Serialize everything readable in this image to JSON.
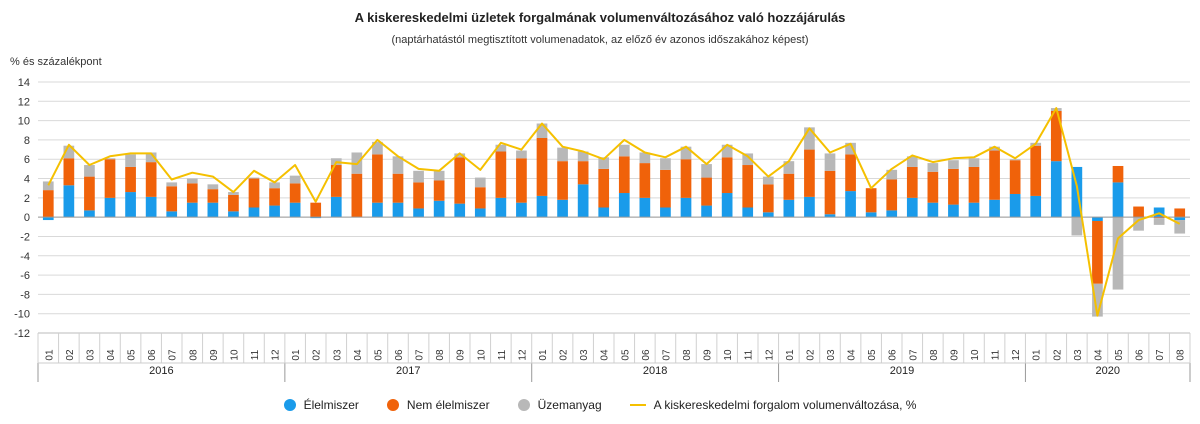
{
  "chart_data": {
    "type": "bar",
    "stacked": true,
    "title": "A kiskereskedelmi üzletek forgalmának volumenváltozásához való hozzájárulás",
    "subtitle": "(naptárhatástól megtisztított volumenadatok, az előző év azonos időszakához képest)",
    "ylabel": "% és százalékpont",
    "ylim": [
      -12,
      14
    ],
    "yticks": [
      14,
      12,
      10,
      8,
      6,
      4,
      2,
      0,
      -2,
      -4,
      -6,
      -8,
      -10,
      -12
    ],
    "grid": true,
    "months": [
      "01",
      "02",
      "03",
      "04",
      "05",
      "06",
      "07",
      "08",
      "09",
      "10",
      "11",
      "12",
      "01",
      "02",
      "03",
      "04",
      "05",
      "06",
      "07",
      "08",
      "09",
      "10",
      "11",
      "12",
      "01",
      "02",
      "03",
      "04",
      "05",
      "06",
      "07",
      "08",
      "09",
      "10",
      "11",
      "12",
      "01",
      "02",
      "03",
      "04",
      "05",
      "06",
      "07",
      "08",
      "09",
      "10",
      "11",
      "12",
      "01",
      "02",
      "03",
      "04",
      "05",
      "06",
      "07",
      "08"
    ],
    "years": [
      {
        "label": "2016",
        "count": 12
      },
      {
        "label": "2017",
        "count": 12
      },
      {
        "label": "2018",
        "count": 12
      },
      {
        "label": "2019",
        "count": 12
      },
      {
        "label": "2020",
        "count": 8
      }
    ],
    "series": [
      {
        "name": "Élelmiszer",
        "color": "#1a9bea",
        "values": [
          -0.3,
          3.3,
          0.7,
          2.0,
          2.6,
          2.1,
          0.6,
          1.5,
          1.5,
          0.6,
          1.0,
          1.2,
          1.5,
          -0.1,
          2.1,
          0.0,
          1.5,
          1.5,
          0.9,
          1.7,
          1.4,
          0.9,
          2.0,
          1.5,
          2.2,
          1.8,
          3.4,
          1.0,
          2.5,
          2.0,
          1.0,
          2.0,
          1.2,
          2.5,
          1.0,
          0.5,
          1.8,
          2.1,
          0.3,
          2.7,
          0.5,
          0.7,
          2.0,
          1.5,
          1.3,
          1.5,
          1.8,
          2.4,
          2.2,
          5.8,
          5.2,
          -0.4,
          3.6,
          0.0,
          1.0,
          -0.3
        ]
      },
      {
        "name": "Nem élelmiszer",
        "color": "#f0620a",
        "values": [
          2.8,
          2.8,
          3.5,
          4.0,
          2.6,
          3.6,
          2.6,
          2.0,
          1.4,
          1.7,
          3.0,
          1.8,
          2.0,
          1.5,
          3.3,
          4.5,
          5.0,
          3.0,
          2.7,
          2.1,
          4.8,
          2.2,
          4.8,
          4.6,
          6.0,
          4.0,
          2.4,
          4.0,
          3.8,
          3.6,
          3.9,
          4.0,
          2.9,
          3.7,
          4.4,
          2.9,
          2.7,
          4.9,
          4.5,
          3.8,
          2.5,
          3.2,
          3.2,
          3.2,
          3.7,
          3.7,
          5.1,
          3.5,
          5.2,
          5.2,
          0.0,
          -6.5,
          1.7,
          1.1,
          -0.1,
          0.9
        ]
      },
      {
        "name": "Üzemanyag",
        "color": "#b8b8b8",
        "values": [
          0.9,
          1.3,
          1.2,
          0.1,
          1.3,
          1.0,
          0.4,
          0.5,
          0.5,
          0.3,
          0.1,
          0.6,
          0.8,
          0.0,
          0.7,
          2.2,
          1.3,
          1.8,
          1.2,
          1.0,
          0.4,
          1.0,
          0.7,
          0.8,
          1.5,
          1.4,
          1.0,
          1.2,
          1.2,
          1.1,
          1.2,
          1.3,
          1.4,
          1.3,
          1.2,
          0.8,
          1.3,
          2.3,
          1.8,
          1.2,
          0.0,
          1.0,
          1.1,
          0.9,
          0.9,
          0.9,
          0.4,
          0.1,
          0.3,
          0.3,
          -1.9,
          -3.4,
          -7.5,
          -1.4,
          -0.7,
          -1.4
        ]
      },
      {
        "name": "A kiskereskedelmi forgalom volumenváltozása, %",
        "type": "line",
        "color": "#f5c000",
        "values": [
          3.3,
          7.5,
          5.4,
          6.3,
          6.6,
          6.6,
          3.9,
          4.6,
          4.2,
          2.6,
          4.8,
          3.6,
          5.4,
          1.6,
          5.7,
          5.5,
          8.0,
          6.3,
          5.0,
          4.8,
          6.6,
          4.9,
          7.7,
          7.0,
          9.7,
          7.3,
          6.8,
          6.0,
          8.0,
          6.7,
          6.2,
          7.3,
          5.5,
          7.5,
          6.3,
          4.2,
          5.8,
          9.2,
          6.7,
          7.6,
          3.0,
          5.0,
          6.4,
          5.7,
          6.1,
          6.2,
          7.3,
          6.1,
          7.6,
          11.3,
          3.2,
          -10.2,
          -2.2,
          -0.3,
          0.4,
          -0.7
        ]
      }
    ]
  },
  "legend": [
    {
      "label": "Élelmiszer",
      "color": "#1a9bea"
    },
    {
      "label": "Nem élelmiszer",
      "color": "#f0620a"
    },
    {
      "label": "Üzemanyag",
      "color": "#b8b8b8"
    },
    {
      "label": "A kiskereskedelmi forgalom volumenváltozása, %",
      "color": "#f5c000"
    }
  ]
}
